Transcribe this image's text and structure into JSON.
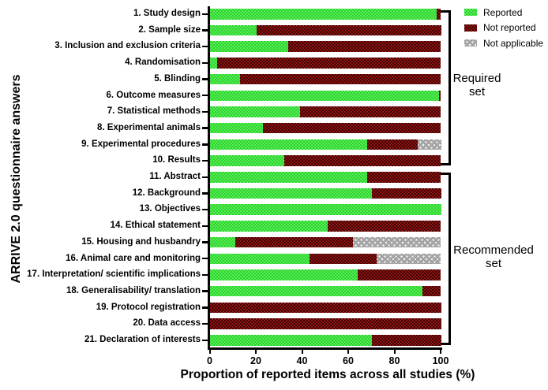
{
  "chart_data": {
    "type": "bar",
    "orientation": "horizontal",
    "stacked": true,
    "title": "",
    "xlabel": "Proportion of reported items across all studies (%)",
    "ylabel": "ARRIVE 2.0 questionnaire answers",
    "xlim": [
      0,
      100
    ],
    "xticks": [
      0,
      20,
      40,
      60,
      80,
      100
    ],
    "grid": false,
    "legend_position": "top-right",
    "legend": [
      {
        "label": "Reported",
        "color": "#3ce03c"
      },
      {
        "label": "Not reported",
        "color": "#7f0d0d"
      },
      {
        "label": "Not applicable",
        "color": "#a6a6a6"
      }
    ],
    "categories": [
      "1. Study design",
      "2. Sample size",
      "3. Inclusion and exclusion criteria",
      "4. Randomisation",
      "5. Blinding",
      "6. Outcome measures",
      "7. Statistical methods",
      "8. Experimental animals",
      "9. Experimental procedures",
      "10. Results",
      "11. Abstract",
      "12. Background",
      "13. Objectives",
      "14. Ethical statement",
      "15. Housing and husbandry",
      "16. Animal care and monitoring",
      "17. Interpretation/ scientific implications",
      "18. Generalisability/ translation",
      "19. Protocol registration",
      "20. Data access",
      "21. Declaration of interests"
    ],
    "series": [
      {
        "name": "Reported",
        "values": [
          98,
          20,
          34,
          3,
          13,
          99,
          39,
          23,
          68,
          32,
          68,
          70,
          100,
          51,
          11,
          43,
          64,
          92,
          0,
          0,
          70
        ]
      },
      {
        "name": "Not reported",
        "values": [
          2,
          80,
          66,
          97,
          87,
          1,
          61,
          77,
          22,
          68,
          32,
          30,
          0,
          49,
          51,
          29,
          36,
          8,
          100,
          100,
          30
        ]
      },
      {
        "name": "Not applicable",
        "values": [
          0,
          0,
          0,
          0,
          0,
          0,
          0,
          0,
          10,
          0,
          0,
          0,
          0,
          0,
          38,
          28,
          0,
          0,
          0,
          0,
          0
        ]
      }
    ],
    "group_brackets": [
      {
        "label": "Required set",
        "from_category": "1. Study design",
        "to_category": "10. Results"
      },
      {
        "label": "Recommended set",
        "from_category": "11. Abstract",
        "to_category": "21. Declaration of interests"
      }
    ]
  },
  "group_labels": {
    "required": {
      "line1": "Required",
      "line2": "set"
    },
    "recommended": {
      "line1": "Recommended",
      "line2": "set"
    }
  }
}
